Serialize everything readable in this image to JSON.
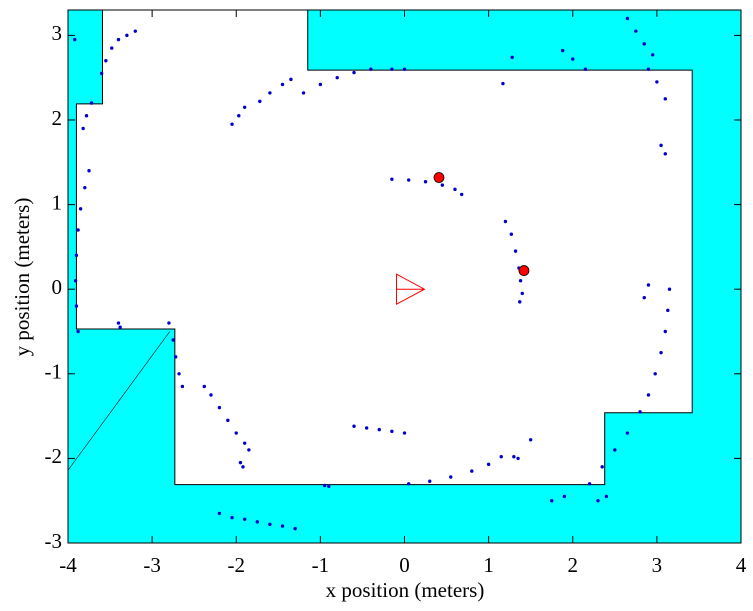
{
  "chart_data": {
    "type": "scatter",
    "xlabel": "x position (meters)",
    "ylabel": "y position (meters)",
    "xlim": [
      -4,
      4
    ],
    "ylim": [
      -3,
      3.3
    ],
    "xticks": [
      -4,
      -3,
      -2,
      -1,
      0,
      1,
      2,
      3,
      4
    ],
    "yticks": [
      -3,
      -2,
      -1,
      0,
      1,
      2,
      3
    ],
    "background_color": "#00ffff",
    "free_space": {
      "color": "#ffffff",
      "x": [
        -3.59,
        -1.15,
        -1.15,
        3.42,
        3.42,
        2.38,
        2.38,
        -2.73,
        -2.73,
        -3.9,
        -3.9,
        -3.59
      ],
      "y": [
        3.3,
        3.3,
        2.59,
        2.59,
        -1.46,
        -1.46,
        -2.31,
        -2.31,
        -0.47,
        -0.47,
        2.19,
        2.19
      ]
    },
    "ray": {
      "x": [
        -4,
        -2.79
      ],
      "y": [
        -2.14,
        -0.5
      ]
    },
    "robot": {
      "x": 0,
      "y": 0,
      "color": "#ff0000"
    },
    "series": [
      {
        "color": "#0000cc",
        "x": [
          -3.88,
          -3.9,
          -3.91,
          -3.9,
          -3.88,
          -3.85,
          -3.8,
          -3.75,
          -3.82,
          -3.78,
          -3.72,
          -3.6,
          -3.55,
          -3.48,
          -3.4,
          -3.3,
          -3.2,
          -3.92,
          -2.8,
          -2.75,
          -2.72,
          -2.68,
          -2.64,
          -3.4,
          -3.38,
          -2.38,
          -2.3,
          -2.2,
          -2.1,
          -2.0,
          -1.9,
          -1.85,
          -1.95,
          -1.92,
          -2.2,
          -2.05,
          -1.9,
          -1.75,
          -1.6,
          -1.45,
          -1.3,
          -0.95,
          -0.9,
          -0.6,
          -0.45,
          -0.3,
          -0.15,
          0,
          0.05,
          0.3,
          0.55,
          0.8,
          1.0,
          1.15,
          1.3,
          1.35,
          1.5,
          1.75,
          1.9,
          2.2,
          2.35,
          2.5,
          2.65,
          2.8,
          2.9,
          2.98,
          3.05,
          3.1,
          3.13,
          3.15,
          2.85,
          2.9,
          2.3,
          2.4,
          3.05,
          3.1,
          2.9,
          3.0,
          3.1,
          2.65,
          2.75,
          2.85,
          2.95,
          1.88,
          2.0,
          2.15,
          1.28,
          1.17,
          -2.05,
          -1.97,
          -1.9,
          -1.72,
          -1.6,
          -1.45,
          -1.35,
          -1.2,
          -1.0,
          -0.8,
          -0.6,
          -0.4,
          -0.15,
          0.0,
          -0.15,
          0.05,
          0.25,
          0.45,
          0.6,
          0.68,
          1.2,
          1.27,
          1.32,
          1.36,
          1.38,
          1.4,
          1.37
        ],
        "y": [
          -0.5,
          -0.2,
          0.1,
          0.4,
          0.7,
          0.95,
          1.2,
          1.4,
          1.9,
          2.05,
          2.2,
          2.55,
          2.7,
          2.85,
          2.95,
          3.0,
          3.05,
          2.95,
          -0.4,
          -0.6,
          -0.8,
          -1.0,
          -1.15,
          -0.4,
          -0.45,
          -1.15,
          -1.25,
          -1.4,
          -1.55,
          -1.7,
          -1.82,
          -1.9,
          -2.05,
          -2.1,
          -2.65,
          -2.7,
          -2.72,
          -2.75,
          -2.78,
          -2.8,
          -2.83,
          -2.32,
          -2.33,
          -1.62,
          -1.64,
          -1.66,
          -1.68,
          -1.7,
          -2.3,
          -2.27,
          -2.22,
          -2.15,
          -2.07,
          -1.98,
          -1.98,
          -2.0,
          -1.78,
          -2.5,
          -2.45,
          -2.3,
          -2.1,
          -1.9,
          -1.7,
          -1.45,
          -1.25,
          -1.0,
          -0.75,
          -0.5,
          -0.25,
          0.0,
          -0.1,
          0.05,
          -2.5,
          -2.45,
          1.7,
          1.6,
          2.6,
          2.45,
          2.25,
          3.2,
          3.05,
          2.9,
          2.77,
          2.82,
          2.72,
          2.6,
          2.74,
          2.43,
          1.95,
          2.05,
          2.15,
          2.22,
          2.32,
          2.42,
          2.48,
          2.32,
          2.42,
          2.5,
          2.56,
          2.6,
          2.6,
          2.6,
          1.3,
          1.29,
          1.27,
          1.23,
          1.18,
          1.12,
          0.8,
          0.65,
          0.45,
          0.25,
          0.1,
          -0.05,
          -0.15
        ]
      },
      {
        "color": "#ff0000",
        "x": [
          0.41,
          1.42
        ],
        "y": [
          1.32,
          0.22
        ]
      }
    ]
  }
}
